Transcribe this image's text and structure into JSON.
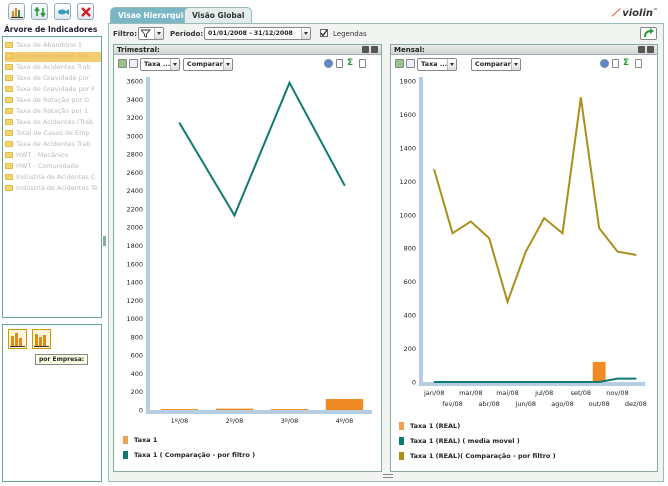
{
  "toolbar": {
    "icons": [
      "chart-icon",
      "refresh-arrows-icon",
      "fish-icon",
      "delete-icon"
    ]
  },
  "left_panel": {
    "title": "Árvore de Indicadores",
    "tree_items": [
      {
        "label": "Taxa de Abandono 1",
        "selected": false
      },
      {
        "label": "Desconhecimento Tela",
        "selected": true
      },
      {
        "label": "Taxa de Acidentes Trab",
        "selected": false
      },
      {
        "label": "Taxa de Gravidade por",
        "selected": false
      },
      {
        "label": "Taxa de Gravidade por F",
        "selected": false
      },
      {
        "label": "Taxa de Rotação por O",
        "selected": false
      },
      {
        "label": "Taxa de Rotação por 1",
        "selected": false
      },
      {
        "label": "Taxa de Acidentes (Trab",
        "selected": false
      },
      {
        "label": "Total de Casos de Emp",
        "selected": false
      },
      {
        "label": "Taxa de Acidentes Trab",
        "selected": false
      },
      {
        "label": "HWT - Mecânico",
        "selected": false
      },
      {
        "label": "HWT - Comunidade",
        "selected": false
      },
      {
        "label": "Indústria de Acidentes C",
        "selected": false
      },
      {
        "label": "Indústria de Acidentes Té",
        "selected": false
      }
    ],
    "tooltip": "por Empresa:"
  },
  "tabs": [
    {
      "label": "Visao Hierarquica",
      "active": true
    },
    {
      "label": "Visão Global",
      "active": false
    }
  ],
  "logo": "violin",
  "filter_bar": {
    "filter_label": "Filtro:",
    "period_label": "Período:",
    "period_value": "01/01/2008 - 31/12/2008",
    "legend_label": "Legendas",
    "legend_checked": true
  },
  "panels": {
    "left": {
      "title": "Trimestral:",
      "measure_select": "Taxa ...",
      "compare_select": "Comparar"
    },
    "right": {
      "title": "Mensal:",
      "measure_select": "Taxa ...",
      "compare_select": "Comparar"
    }
  },
  "colors": {
    "orange": "#f08a24",
    "teal": "#117a70",
    "olive": "#a8901c",
    "axis_bar": "#b7cde0"
  },
  "chart_data": [
    {
      "type": "bar",
      "title": "Trimestral:",
      "categories": [
        "1º/08",
        "2º/08",
        "3º/08",
        "4º/08"
      ],
      "ylim": [
        0,
        3600
      ],
      "yticks": [
        0,
        200,
        400,
        600,
        800,
        1000,
        1200,
        1400,
        1600,
        1800,
        2000,
        2200,
        2400,
        2600,
        2800,
        3000,
        3200,
        3400,
        3600
      ],
      "grid": false,
      "legend_placement": "bottom",
      "series": [
        {
          "name": "Taxa 1",
          "kind": "bar",
          "color": "#f08a24",
          "values": [
            10,
            15,
            10,
            120
          ]
        },
        {
          "name": "Taxa 1 ( Comparação - por filtro )",
          "kind": "line",
          "color": "#117a70",
          "values": [
            3140,
            2130,
            3580,
            2460
          ]
        }
      ]
    },
    {
      "type": "bar",
      "title": "Mensal:",
      "categories": [
        "jan/08",
        "fev/08",
        "mar/08",
        "abr/08",
        "mai/08",
        "jun/08",
        "jul/08",
        "ago/08",
        "set/08",
        "out/08",
        "nov/08",
        "dez/08"
      ],
      "ylim": [
        0,
        1800
      ],
      "yticks": [
        0,
        200,
        400,
        600,
        800,
        1000,
        1200,
        1400,
        1600,
        1800
      ],
      "grid": false,
      "legend_placement": "bottom",
      "series": [
        {
          "name": "Taxa 1 (REAL)",
          "kind": "bar",
          "color": "#f08a24",
          "values": [
            0,
            0,
            0,
            0,
            0,
            0,
            0,
            0,
            0,
            120,
            0,
            0
          ]
        },
        {
          "name": "Taxa 1 (REAL) ( media movel )",
          "kind": "line",
          "color": "#117a70",
          "values": [
            0,
            0,
            0,
            0,
            0,
            0,
            0,
            0,
            0,
            0,
            20,
            20
          ]
        },
        {
          "name": "Taxa 1 (REAL)( Comparação - por filtro )",
          "kind": "line",
          "color": "#a8901c",
          "values": [
            1270,
            890,
            960,
            860,
            480,
            780,
            980,
            890,
            1700,
            920,
            780,
            760
          ]
        }
      ]
    }
  ]
}
